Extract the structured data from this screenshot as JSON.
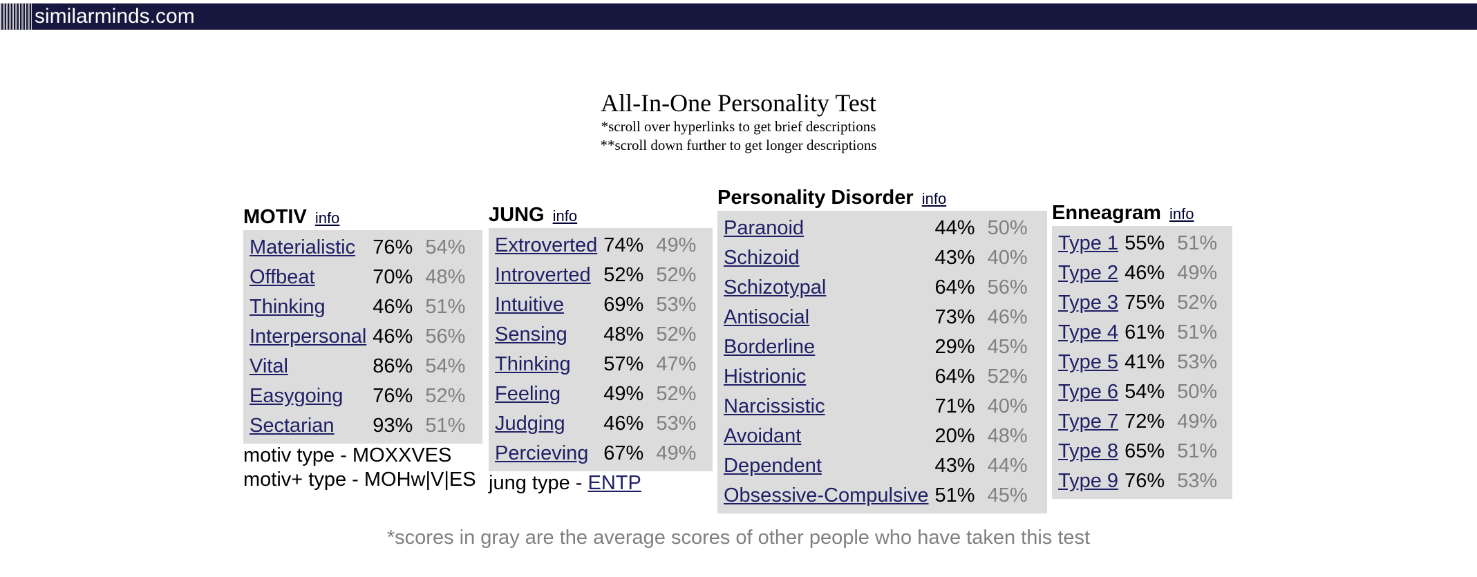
{
  "site": {
    "name": "similarminds.com"
  },
  "header": {
    "title": "All-In-One Personality Test",
    "note1": "*scroll over hyperlinks to get brief descriptions",
    "note2": "**scroll down further to get longer descriptions"
  },
  "motiv": {
    "heading": "MOTIV",
    "info": "info",
    "rows": [
      {
        "label": "Materialistic",
        "score": "76%",
        "avg": "54%"
      },
      {
        "label": "Offbeat",
        "score": "70%",
        "avg": "48%"
      },
      {
        "label": "Thinking",
        "score": "46%",
        "avg": "51%"
      },
      {
        "label": "Interpersonal",
        "score": "46%",
        "avg": "56%"
      },
      {
        "label": "Vital",
        "score": "86%",
        "avg": "54%"
      },
      {
        "label": "Easygoing",
        "score": "76%",
        "avg": "52%"
      },
      {
        "label": "Sectarian",
        "score": "93%",
        "avg": "51%"
      }
    ],
    "type_line": "motiv type - MOXXVES",
    "type_plus_line": "motiv+ type - MOHw|V|ES"
  },
  "jung": {
    "heading": "JUNG",
    "info": "info",
    "rows": [
      {
        "label": "Extroverted",
        "score": "74%",
        "avg": "49%"
      },
      {
        "label": "Introverted",
        "score": "52%",
        "avg": "52%"
      },
      {
        "label": "Intuitive",
        "score": "69%",
        "avg": "53%"
      },
      {
        "label": "Sensing",
        "score": "48%",
        "avg": "52%"
      },
      {
        "label": "Thinking",
        "score": "57%",
        "avg": "47%"
      },
      {
        "label": "Feeling",
        "score": "49%",
        "avg": "52%"
      },
      {
        "label": "Judging",
        "score": "46%",
        "avg": "53%"
      },
      {
        "label": "Percieving",
        "score": "67%",
        "avg": "49%"
      }
    ],
    "type_prefix": "jung type - ",
    "type_value": "ENTP"
  },
  "disorder": {
    "heading": "Personality Disorder",
    "info": "info",
    "rows": [
      {
        "label": "Paranoid",
        "score": "44%",
        "avg": "50%"
      },
      {
        "label": "Schizoid",
        "score": "43%",
        "avg": "40%"
      },
      {
        "label": "Schizotypal",
        "score": "64%",
        "avg": "56%"
      },
      {
        "label": "Antisocial",
        "score": "73%",
        "avg": "46%"
      },
      {
        "label": "Borderline",
        "score": "29%",
        "avg": "45%"
      },
      {
        "label": "Histrionic",
        "score": "64%",
        "avg": "52%"
      },
      {
        "label": "Narcissistic",
        "score": "71%",
        "avg": "40%"
      },
      {
        "label": "Avoidant",
        "score": "20%",
        "avg": "48%"
      },
      {
        "label": "Dependent",
        "score": "43%",
        "avg": "44%"
      },
      {
        "label": "Obsessive-Compulsive",
        "score": "51%",
        "avg": "45%"
      }
    ]
  },
  "enneagram": {
    "heading": "Enneagram",
    "info": "info",
    "rows": [
      {
        "label": "Type 1",
        "score": "55%",
        "avg": "51%"
      },
      {
        "label": "Type 2",
        "score": "46%",
        "avg": "49%"
      },
      {
        "label": "Type 3",
        "score": "75%",
        "avg": "52%"
      },
      {
        "label": "Type 4",
        "score": "61%",
        "avg": "51%"
      },
      {
        "label": "Type 5",
        "score": "41%",
        "avg": "53%"
      },
      {
        "label": "Type 6",
        "score": "54%",
        "avg": "50%"
      },
      {
        "label": "Type 7",
        "score": "72%",
        "avg": "49%"
      },
      {
        "label": "Type 8",
        "score": "65%",
        "avg": "51%"
      },
      {
        "label": "Type 9",
        "score": "76%",
        "avg": "53%"
      }
    ]
  },
  "footnote": "*scores in gray are the average scores of other people who have taken this test"
}
